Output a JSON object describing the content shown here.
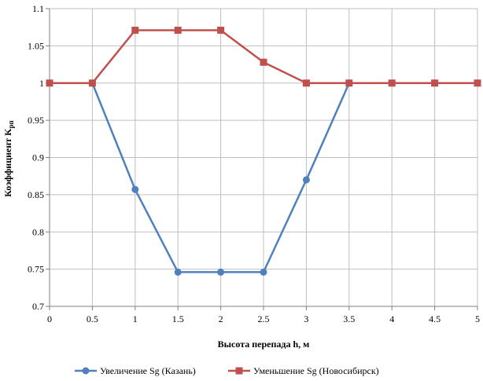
{
  "chart_data": {
    "type": "line",
    "title": "",
    "xlabel": "Высота перепада h, м",
    "ylabel_main": "Коэффициент K",
    "ylabel_sub": "рп",
    "x": [
      0,
      0.5,
      1,
      1.5,
      2,
      2.5,
      3,
      3.5,
      4,
      4.5,
      5
    ],
    "xlim": [
      0,
      5
    ],
    "ylim": [
      0.7,
      1.1
    ],
    "x_ticks": [
      "0",
      "0.5",
      "1",
      "1.5",
      "2",
      "2.5",
      "3",
      "3.5",
      "4",
      "4.5",
      "5"
    ],
    "y_ticks": [
      "0.7",
      "0.75",
      "0.8",
      "0.85",
      "0.9",
      "0.95",
      "1",
      "1.05",
      "1.1"
    ],
    "y_tick_values": [
      0.7,
      0.75,
      0.8,
      0.85,
      0.9,
      0.95,
      1,
      1.05,
      1.1
    ],
    "grid": true,
    "legend_position": "bottom",
    "series": [
      {
        "name": "Увеличение Sg (Казань)",
        "color": "#4f81bd",
        "marker": "circle",
        "x": [
          0.5,
          1,
          1.5,
          2,
          2.5,
          3,
          3.5
        ],
        "values": [
          1.0,
          0.857,
          0.746,
          0.746,
          0.746,
          0.87,
          1.0
        ]
      },
      {
        "name": "Уменьшение Sg (Новосибирск)",
        "color": "#c0504d",
        "marker": "square",
        "x": [
          0,
          0.5,
          1,
          1.5,
          2,
          2.5,
          3,
          3.5,
          4,
          4.5,
          5
        ],
        "values": [
          1.0,
          1.0,
          1.071,
          1.071,
          1.071,
          1.028,
          1.0,
          1.0,
          1.0,
          1.0,
          1.0
        ]
      }
    ]
  }
}
